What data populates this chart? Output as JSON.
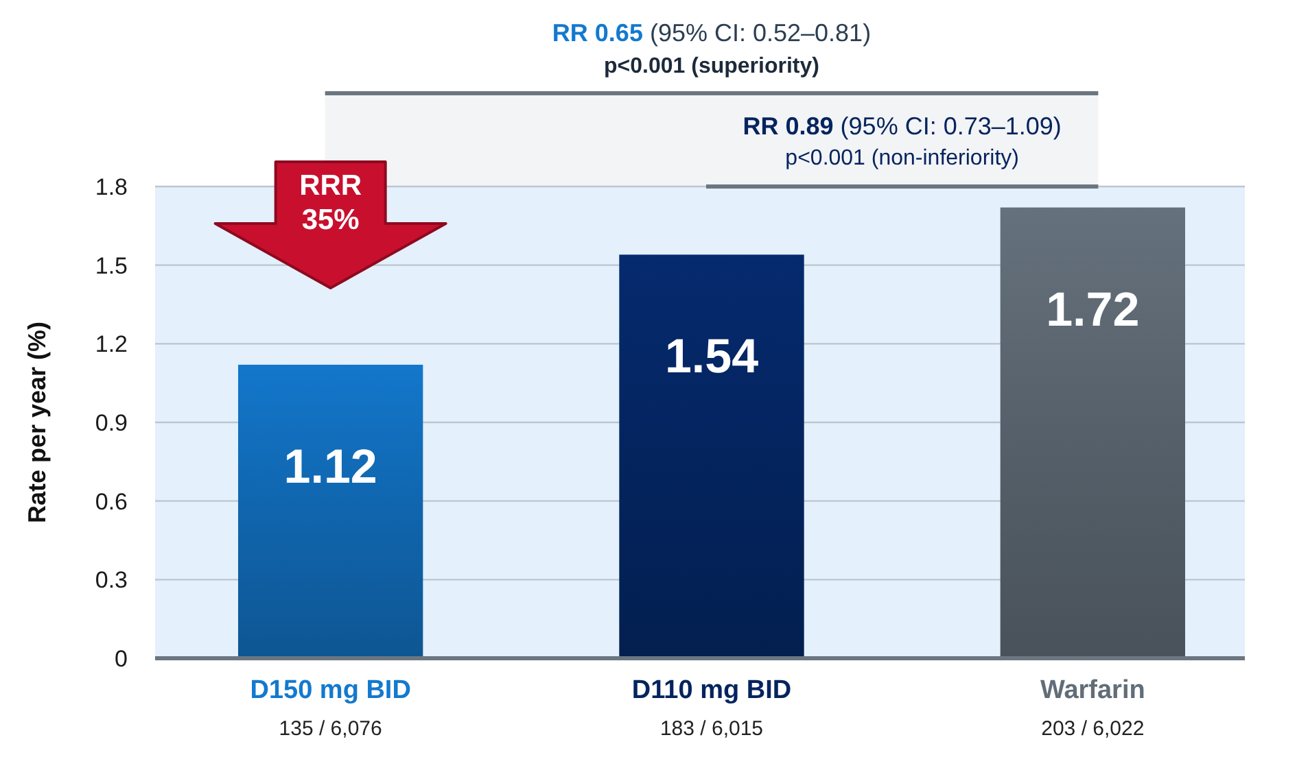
{
  "chart_data": {
    "type": "bar",
    "ylabel": "Rate per year (%)",
    "categories": [
      "D150 mg BID\n135 / 6,076",
      "D110 mg BID\n183 / 6,015",
      "Warfarin\n203 / 6,022"
    ],
    "values": [
      1.12,
      1.54,
      1.72
    ],
    "colors": [
      "#1065ad",
      "#04245e",
      "#56606a"
    ],
    "ylim": [
      0,
      1.8
    ],
    "yticks": [
      0,
      0.3,
      0.6,
      0.9,
      1.2,
      1.5,
      1.8
    ],
    "grid": "y",
    "data_labels": true,
    "annotations": [
      "RR 0.65 (95% CI: 0.52–0.81)",
      "p<0.001 (superiority)",
      "RR 0.89 (95% CI: 0.73–1.09)",
      "p<0.001 (non-inferiority)",
      "RRR\n35%"
    ]
  }
}
